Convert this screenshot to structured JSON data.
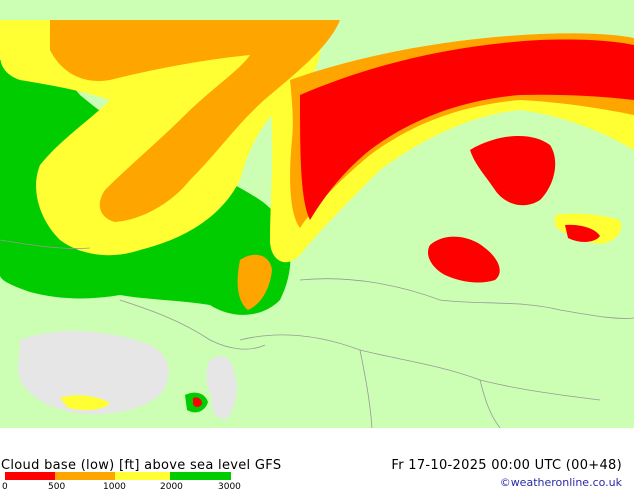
{
  "map": {
    "title": "Cloud base (low) [ft] above sea level GFS",
    "datetime": "Fr 17-10-2025 00:00 UTC (00+48)",
    "credit": "©weatheronline.co.uk",
    "colors": {
      "land": "#ccffb3",
      "sea": "#e6e6e6",
      "red": "#ff0000",
      "orange": "#ffa500",
      "yellow": "#ffff33",
      "green": "#00cc00",
      "border": "#999999"
    }
  },
  "legend": {
    "ticks": [
      "0",
      "500",
      "1000",
      "2000",
      "3000"
    ],
    "colors": [
      "#ff0000",
      "#ffa500",
      "#ffff33",
      "#00cc00"
    ]
  }
}
